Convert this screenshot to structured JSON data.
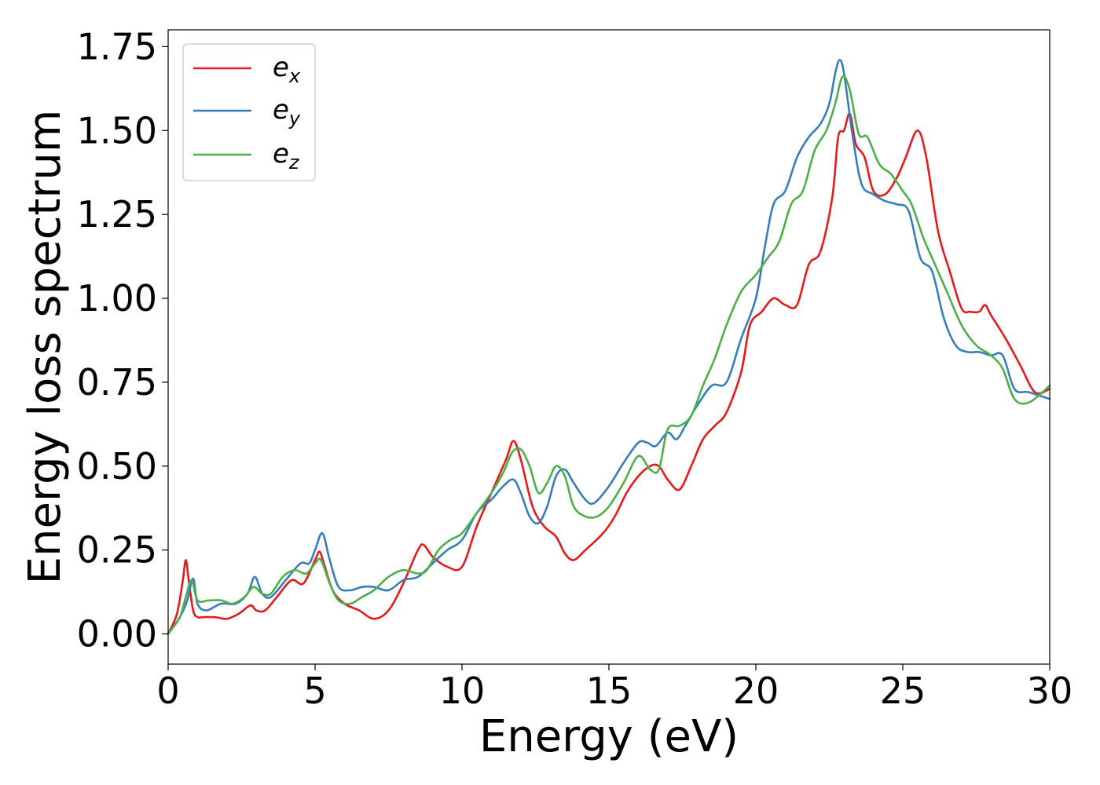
{
  "chart_data": {
    "type": "line",
    "title": "",
    "xlabel": "Energy (eV)",
    "ylabel": "Energy loss spectrum",
    "xlim": [
      0,
      30
    ],
    "ylim": [
      -0.09,
      1.8
    ],
    "xticks": [
      0,
      5,
      10,
      15,
      20,
      25,
      30
    ],
    "xtick_labels": [
      "0",
      "5",
      "10",
      "15",
      "20",
      "25",
      "30"
    ],
    "yticks": [
      0.0,
      0.25,
      0.5,
      0.75,
      1.0,
      1.25,
      1.5,
      1.75
    ],
    "ytick_labels": [
      "0.00",
      "0.25",
      "0.50",
      "0.75",
      "1.00",
      "1.25",
      "1.50",
      "1.75"
    ],
    "grid": false,
    "legend_position": "top-left",
    "series": [
      {
        "name": "e_x",
        "label_base": "e",
        "label_sub": "x",
        "color": "#e41a1c",
        "x": [
          0,
          0.3,
          0.5,
          0.6,
          0.7,
          0.85,
          1.0,
          1.2,
          1.6,
          2.0,
          2.4,
          2.8,
          3.0,
          3.3,
          3.7,
          4.2,
          4.6,
          5.0,
          5.15,
          5.3,
          5.6,
          6.0,
          6.5,
          7.0,
          7.5,
          8.0,
          8.5,
          8.7,
          9.0,
          9.5,
          10.0,
          10.5,
          11.0,
          11.5,
          11.75,
          12.0,
          12.4,
          12.8,
          13.2,
          13.5,
          13.8,
          14.2,
          14.8,
          15.2,
          15.6,
          16.0,
          16.4,
          16.7,
          17.0,
          17.4,
          17.8,
          18.2,
          18.6,
          19.0,
          19.5,
          19.8,
          20.2,
          20.6,
          21.0,
          21.4,
          21.8,
          22.2,
          22.6,
          22.8,
          23.0,
          23.2,
          23.4,
          23.7,
          24.0,
          24.4,
          24.8,
          25.1,
          25.5,
          25.8,
          26.2,
          26.6,
          27.0,
          27.3,
          27.6,
          27.8,
          28.0,
          28.5,
          29.0,
          29.5,
          30.0
        ],
        "y": [
          0.0,
          0.06,
          0.16,
          0.22,
          0.16,
          0.07,
          0.05,
          0.05,
          0.05,
          0.045,
          0.06,
          0.085,
          0.07,
          0.07,
          0.11,
          0.16,
          0.15,
          0.22,
          0.245,
          0.21,
          0.13,
          0.09,
          0.07,
          0.045,
          0.07,
          0.15,
          0.25,
          0.265,
          0.23,
          0.2,
          0.2,
          0.32,
          0.42,
          0.52,
          0.575,
          0.52,
          0.38,
          0.32,
          0.29,
          0.24,
          0.22,
          0.25,
          0.3,
          0.35,
          0.42,
          0.47,
          0.5,
          0.5,
          0.46,
          0.43,
          0.5,
          0.58,
          0.62,
          0.66,
          0.78,
          0.92,
          0.96,
          1.0,
          0.98,
          0.98,
          1.1,
          1.14,
          1.3,
          1.48,
          1.5,
          1.55,
          1.46,
          1.42,
          1.32,
          1.31,
          1.36,
          1.42,
          1.5,
          1.42,
          1.2,
          1.08,
          0.97,
          0.96,
          0.96,
          0.98,
          0.95,
          0.88,
          0.8,
          0.72,
          0.73
        ]
      },
      {
        "name": "e_y",
        "label_base": "e",
        "label_sub": "y",
        "color": "#377eb8",
        "x": [
          0,
          0.4,
          0.65,
          0.85,
          1.0,
          1.3,
          1.8,
          2.3,
          2.7,
          2.95,
          3.2,
          3.5,
          4.0,
          4.5,
          4.8,
          5.0,
          5.25,
          5.5,
          5.8,
          6.2,
          6.6,
          7.0,
          7.5,
          8.0,
          8.5,
          9.0,
          9.5,
          10.0,
          10.5,
          11.0,
          11.4,
          11.75,
          12.0,
          12.3,
          12.6,
          12.9,
          13.2,
          13.5,
          13.8,
          14.2,
          14.5,
          15.0,
          15.5,
          16.0,
          16.3,
          16.6,
          17.0,
          17.3,
          17.6,
          18.0,
          18.5,
          19.0,
          19.5,
          20.0,
          20.3,
          20.6,
          21.0,
          21.4,
          21.8,
          22.2,
          22.5,
          22.7,
          22.85,
          23.0,
          23.3,
          23.6,
          24.0,
          24.4,
          24.8,
          25.2,
          25.6,
          26.0,
          26.4,
          26.8,
          27.2,
          27.6,
          28.0,
          28.4,
          28.8,
          29.3,
          30.0
        ],
        "y": [
          0.0,
          0.05,
          0.1,
          0.165,
          0.09,
          0.07,
          0.09,
          0.09,
          0.12,
          0.17,
          0.12,
          0.11,
          0.16,
          0.21,
          0.21,
          0.25,
          0.3,
          0.22,
          0.14,
          0.13,
          0.14,
          0.14,
          0.13,
          0.16,
          0.17,
          0.21,
          0.25,
          0.28,
          0.36,
          0.4,
          0.44,
          0.46,
          0.42,
          0.35,
          0.33,
          0.38,
          0.47,
          0.49,
          0.45,
          0.4,
          0.39,
          0.44,
          0.51,
          0.57,
          0.57,
          0.56,
          0.6,
          0.58,
          0.62,
          0.68,
          0.74,
          0.75,
          0.88,
          1.0,
          1.15,
          1.28,
          1.32,
          1.42,
          1.48,
          1.52,
          1.58,
          1.67,
          1.71,
          1.67,
          1.48,
          1.34,
          1.31,
          1.29,
          1.28,
          1.26,
          1.12,
          1.08,
          0.94,
          0.86,
          0.84,
          0.84,
          0.83,
          0.83,
          0.73,
          0.72,
          0.7
        ]
      },
      {
        "name": "e_z",
        "label_base": "e",
        "label_sub": "z",
        "color": "#4daf4a",
        "x": [
          0,
          0.4,
          0.6,
          0.8,
          1.0,
          1.4,
          1.8,
          2.2,
          2.6,
          2.9,
          3.2,
          3.5,
          3.9,
          4.3,
          4.7,
          5.0,
          5.2,
          5.5,
          5.8,
          6.2,
          6.6,
          7.0,
          7.5,
          8.0,
          8.5,
          8.8,
          9.2,
          9.6,
          10.0,
          10.5,
          11.0,
          11.4,
          11.7,
          12.0,
          12.3,
          12.6,
          12.9,
          13.2,
          13.5,
          13.8,
          14.2,
          14.6,
          15.0,
          15.5,
          16.0,
          16.4,
          16.7,
          17.0,
          17.4,
          17.8,
          18.2,
          18.6,
          19.0,
          19.5,
          20.0,
          20.4,
          20.8,
          21.2,
          21.6,
          22.0,
          22.4,
          22.7,
          22.95,
          23.2,
          23.5,
          23.8,
          24.2,
          24.6,
          25.0,
          25.3,
          25.7,
          26.0,
          26.5,
          27.0,
          27.5,
          28.0,
          28.4,
          28.8,
          29.3,
          30.0
        ],
        "y": [
          0.0,
          0.05,
          0.11,
          0.16,
          0.1,
          0.1,
          0.1,
          0.09,
          0.11,
          0.14,
          0.12,
          0.12,
          0.17,
          0.19,
          0.18,
          0.21,
          0.22,
          0.15,
          0.1,
          0.09,
          0.11,
          0.13,
          0.17,
          0.19,
          0.18,
          0.19,
          0.25,
          0.28,
          0.3,
          0.36,
          0.42,
          0.48,
          0.54,
          0.55,
          0.5,
          0.42,
          0.45,
          0.5,
          0.47,
          0.38,
          0.35,
          0.35,
          0.38,
          0.45,
          0.53,
          0.49,
          0.49,
          0.61,
          0.62,
          0.65,
          0.74,
          0.82,
          0.92,
          1.02,
          1.07,
          1.12,
          1.17,
          1.28,
          1.32,
          1.44,
          1.5,
          1.58,
          1.66,
          1.62,
          1.49,
          1.48,
          1.4,
          1.37,
          1.32,
          1.28,
          1.18,
          1.12,
          1.02,
          0.92,
          0.86,
          0.83,
          0.79,
          0.7,
          0.69,
          0.74
        ]
      }
    ]
  }
}
